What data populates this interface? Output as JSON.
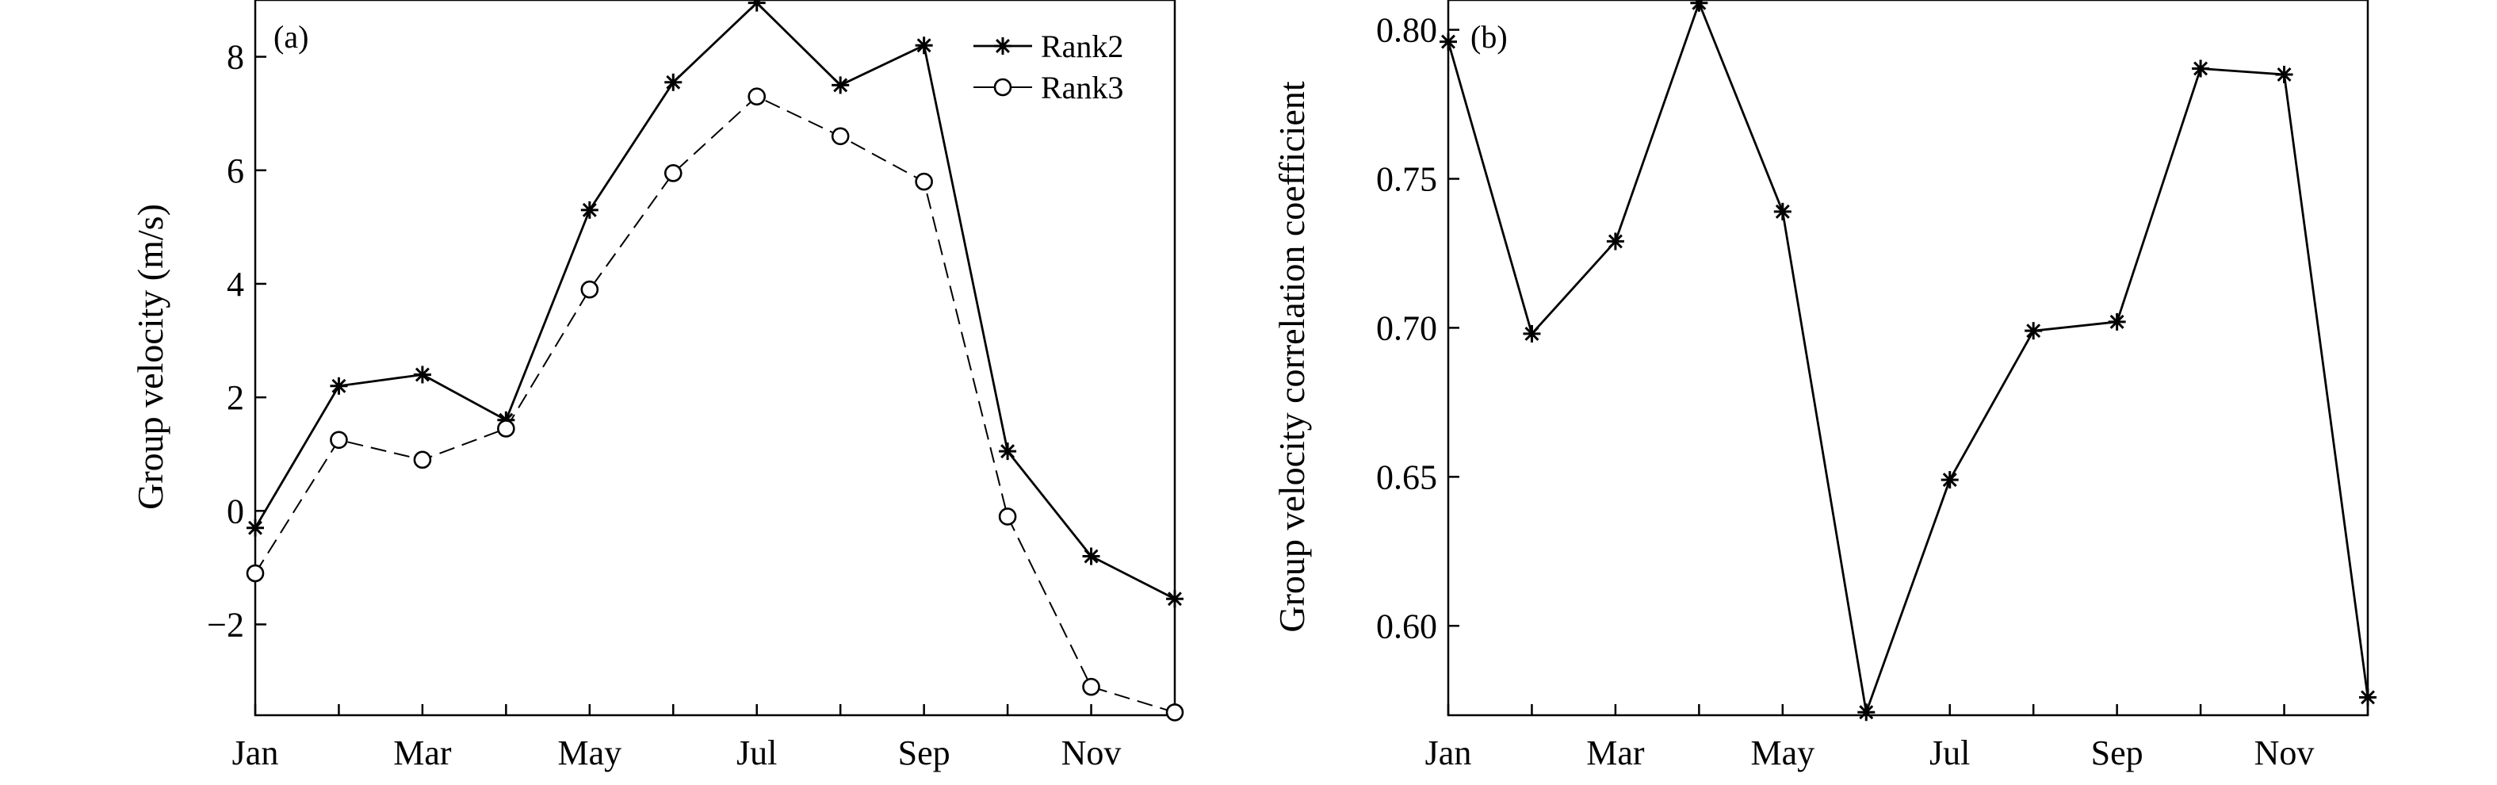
{
  "chart_data": [
    {
      "type": "line",
      "panel_label": "(a)",
      "ylabel": "Group velocity (m/s)",
      "x": [
        "Jan",
        "Feb",
        "Mar",
        "Apr",
        "May",
        "Jun",
        "Jul",
        "Aug",
        "Sep",
        "Oct",
        "Nov",
        "Dec"
      ],
      "xtick_labels": [
        "Jan",
        "Mar",
        "May",
        "Jul",
        "Sep",
        "Nov"
      ],
      "ylim": [
        -3.6,
        9.0
      ],
      "yticks": [
        -2,
        0,
        2,
        4,
        6,
        8
      ],
      "ytick_labels": [
        "−2",
        "0",
        "2",
        "4",
        "6",
        "8"
      ],
      "legend_position": "top-right",
      "grid": false,
      "series": [
        {
          "name": "Rank2",
          "marker": "asterisk",
          "line_style": "solid",
          "values": [
            -0.3,
            2.2,
            2.4,
            1.6,
            5.3,
            7.55,
            8.95,
            7.5,
            8.2,
            1.05,
            -0.8,
            -1.55
          ]
        },
        {
          "name": "Rank3",
          "marker": "open-circle",
          "line_style": "dashed",
          "values": [
            -1.1,
            1.25,
            0.9,
            1.45,
            3.9,
            5.95,
            7.3,
            6.6,
            5.8,
            -0.1,
            -3.1,
            -3.55
          ]
        }
      ]
    },
    {
      "type": "line",
      "panel_label": "(b)",
      "ylabel": "Group velocity correlation coefficient",
      "x": [
        "Jan",
        "Feb",
        "Mar",
        "Apr",
        "May",
        "Jun",
        "Jul",
        "Aug",
        "Sep",
        "Oct",
        "Nov",
        "Dec"
      ],
      "xtick_labels": [
        "Jan",
        "Mar",
        "May",
        "Jul",
        "Sep",
        "Nov"
      ],
      "ylim": [
        0.57,
        0.81
      ],
      "yticks": [
        0.6,
        0.65,
        0.7,
        0.75,
        0.8
      ],
      "ytick_labels": [
        "0.60",
        "0.65",
        "0.70",
        "0.75",
        "0.80"
      ],
      "grid": false,
      "series": [
        {
          "marker": "asterisk",
          "line_style": "solid",
          "values": [
            0.796,
            0.698,
            0.729,
            0.809,
            0.739,
            0.571,
            0.649,
            0.699,
            0.702,
            0.787,
            0.785,
            0.576
          ]
        }
      ]
    }
  ]
}
